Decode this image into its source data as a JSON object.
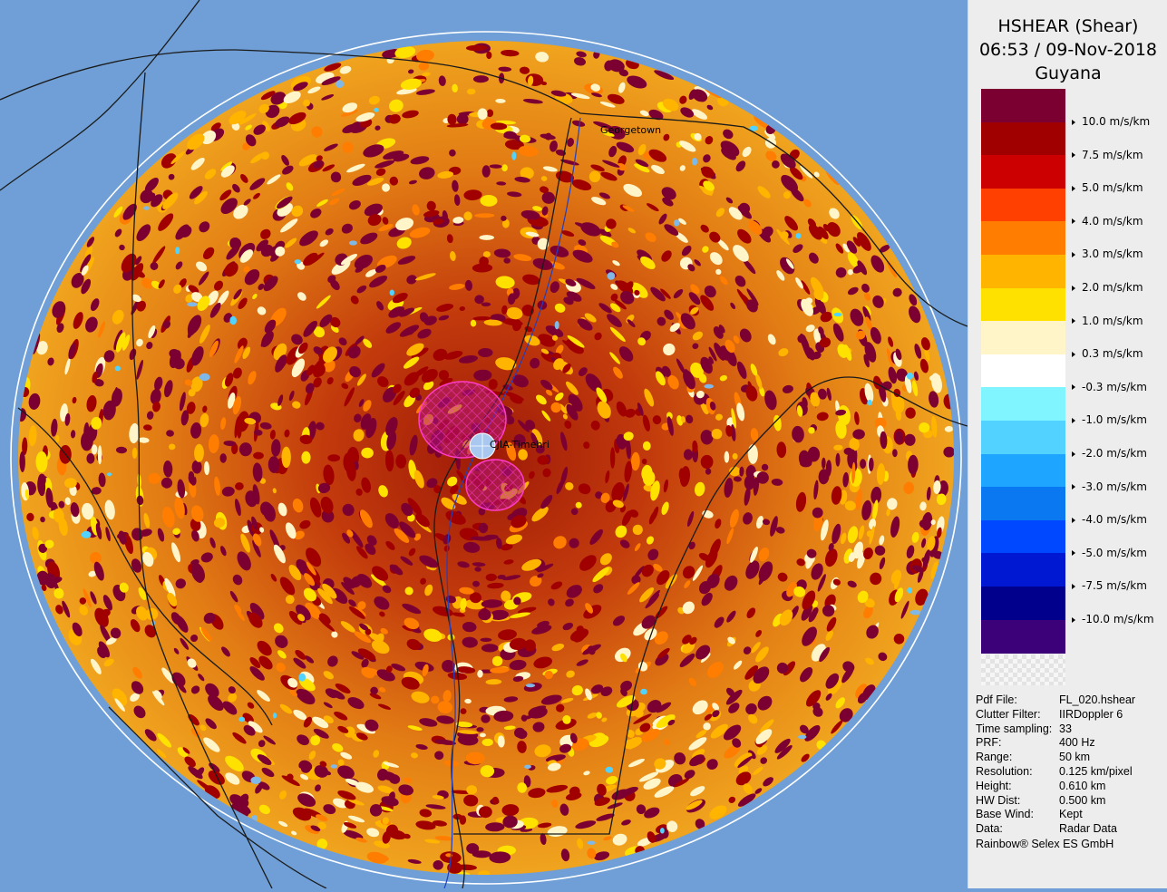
{
  "header": {
    "product": "HSHEAR (Shear)",
    "datetime": "06:53 / 09-Nov-2018",
    "site": "Guyana"
  },
  "legend": {
    "colors": [
      "#7b0031",
      "#a00000",
      "#cc0000",
      "#ff4000",
      "#ff7d00",
      "#ffb400",
      "#ffe100",
      "#fff5c8",
      "#ffffff",
      "#80f4ff",
      "#52d2ff",
      "#1ea5ff",
      "#0a78f0",
      "#0048ff",
      "#0018d2",
      "#00008c",
      "#3c0078"
    ],
    "labels": [
      "10.0 m/s/km",
      "7.5 m/s/km",
      "5.0 m/s/km",
      "4.0 m/s/km",
      "3.0 m/s/km",
      "2.0 m/s/km",
      "1.0 m/s/km",
      "0.3 m/s/km",
      "-0.3 m/s/km",
      "-1.0 m/s/km",
      "-2.0 m/s/km",
      "-3.0 m/s/km",
      "-4.0 m/s/km",
      "-5.0 m/s/km",
      "-7.5 m/s/km",
      "-10.0 m/s/km"
    ]
  },
  "map": {
    "places": [
      {
        "name": "Georgetown"
      },
      {
        "name": "CJIA-Timehri"
      }
    ]
  },
  "info": {
    "rows": [
      {
        "key": "Pdf File:",
        "value": "FL_020.hshear"
      },
      {
        "key": "Clutter Filter:",
        "value": "IIRDoppler 6"
      },
      {
        "key": "Time sampling:",
        "value": "33"
      },
      {
        "key": "PRF:",
        "value": "400 Hz"
      },
      {
        "key": "Range:",
        "value": "50 km"
      },
      {
        "key": "Resolution:",
        "value": "0.125 km/pixel"
      },
      {
        "key": "Height:",
        "value": "0.610 km"
      },
      {
        "key": "HW Dist:",
        "value": "0.500 km"
      },
      {
        "key": "Base Wind:",
        "value": "Kept"
      },
      {
        "key": "Data:",
        "value": "Radar Data"
      }
    ],
    "footer": "Rainbow® Selex ES GmbH"
  }
}
